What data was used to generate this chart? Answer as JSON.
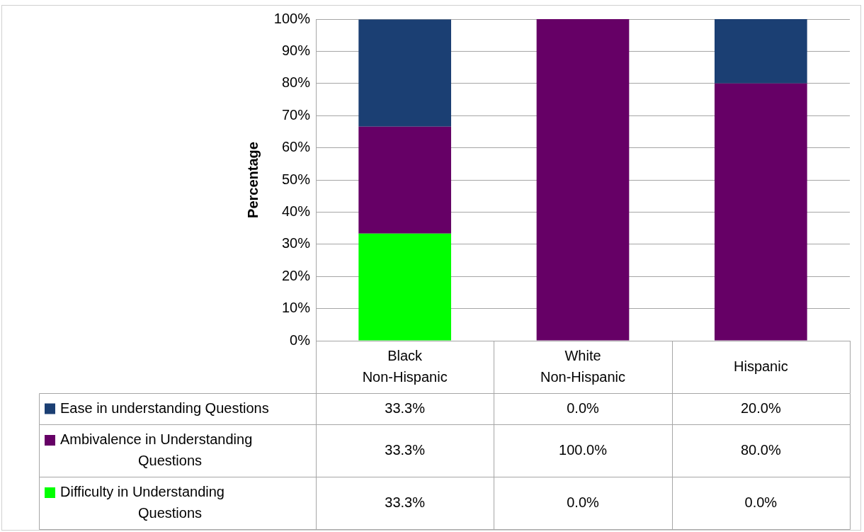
{
  "chart_data": {
    "type": "bar",
    "stacked": true,
    "ylabel": "Percentage",
    "categories": [
      "Black Non-Hispanic",
      "White Non-Hispanic",
      "Hispanic"
    ],
    "series": [
      {
        "name": "Difficulty in Understanding Questions",
        "color": "#00ff00",
        "values": [
          33.3,
          0.0,
          0.0
        ],
        "value_labels": [
          "33.3%",
          "0.0%",
          "0.0%"
        ]
      },
      {
        "name": "Ambivalence in Understanding Questions",
        "color": "#660066",
        "values": [
          33.3,
          100.0,
          80.0
        ],
        "value_labels": [
          "33.3%",
          "100.0%",
          "80.0%"
        ]
      },
      {
        "name": "Ease in understanding Questions",
        "color": "#1b3f73",
        "values": [
          33.3,
          0.0,
          20.0
        ],
        "value_labels": [
          "33.3%",
          "0.0%",
          "20.0%"
        ]
      }
    ],
    "ylim": [
      0,
      100
    ],
    "yticks": [
      {
        "value": 0,
        "label": "0%"
      },
      {
        "value": 10,
        "label": "10%"
      },
      {
        "value": 20,
        "label": "20%"
      },
      {
        "value": 30,
        "label": "30%"
      },
      {
        "value": 40,
        "label": "40%"
      },
      {
        "value": 50,
        "label": "50%"
      },
      {
        "value": 60,
        "label": "60%"
      },
      {
        "value": 70,
        "label": "70%"
      },
      {
        "value": 80,
        "label": "80%"
      },
      {
        "value": 90,
        "label": "90%"
      },
      {
        "value": 100,
        "label": "100%"
      }
    ],
    "grid": "y",
    "legend": "bottom"
  }
}
